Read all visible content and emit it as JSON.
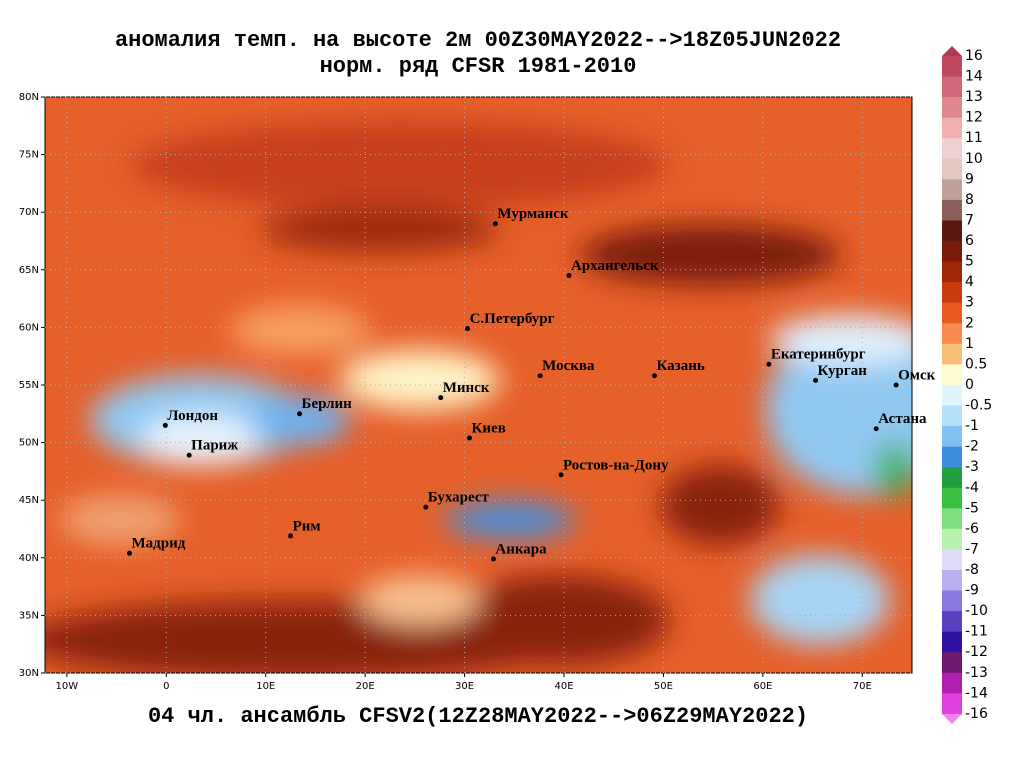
{
  "title": [
    "аномалия темп. на высоте 2м 00Z30MAY2022-->18Z05JUN2022",
    "норм. ряд CFSR 1981-2010"
  ],
  "footer": "04 чл. ансамбль CFSV2(12Z28MAY2022-->06Z29MAY2022)",
  "map": {
    "xlim": [
      -12.2,
      75
    ],
    "ylim": [
      30,
      80
    ],
    "xticks": [
      {
        "value": -10,
        "label": "10W"
      },
      0,
      {
        "value": 10,
        "label": "10E"
      },
      {
        "value": 20,
        "label": "20E"
      },
      {
        "value": 30,
        "label": "30E"
      },
      {
        "value": 40,
        "label": "40E"
      },
      {
        "value": 50,
        "label": "50E"
      },
      {
        "value": 60,
        "label": "60E"
      },
      {
        "value": 70,
        "label": "70E"
      }
    ],
    "yticks": [
      {
        "value": 30,
        "label": "30N"
      },
      {
        "value": 35,
        "label": "35N"
      },
      {
        "value": 40,
        "label": "40N"
      },
      {
        "value": 45,
        "label": "45N"
      },
      {
        "value": 50,
        "label": "50N"
      },
      {
        "value": 55,
        "label": "55N"
      },
      {
        "value": 60,
        "label": "60N"
      },
      {
        "value": 65,
        "label": "65N"
      },
      {
        "value": 70,
        "label": "70N"
      },
      {
        "value": 75,
        "label": "75N"
      },
      {
        "value": 80,
        "label": "80N"
      }
    ],
    "grid": true,
    "cities": [
      {
        "name": "Мурманск",
        "lon": 33.1,
        "lat": 69.0
      },
      {
        "name": "Архангельск",
        "lon": 40.5,
        "lat": 64.5
      },
      {
        "name": "С.Петербург",
        "lon": 30.3,
        "lat": 59.9
      },
      {
        "name": "Москва",
        "lon": 37.6,
        "lat": 55.8
      },
      {
        "name": "Казань",
        "lon": 49.1,
        "lat": 55.8
      },
      {
        "name": "Екатеринбург",
        "lon": 60.6,
        "lat": 56.8
      },
      {
        "name": "Курган",
        "lon": 65.3,
        "lat": 55.4
      },
      {
        "name": "Омск",
        "lon": 73.4,
        "lat": 55.0
      },
      {
        "name": "Астана",
        "lon": 71.4,
        "lat": 51.2
      },
      {
        "name": "Минск",
        "lon": 27.6,
        "lat": 53.9
      },
      {
        "name": "Берлин",
        "lon": 13.4,
        "lat": 52.5
      },
      {
        "name": "Лондон",
        "lon": -0.1,
        "lat": 51.5
      },
      {
        "name": "Париж",
        "lon": 2.3,
        "lat": 48.9
      },
      {
        "name": "Киев",
        "lon": 30.5,
        "lat": 50.4
      },
      {
        "name": "Ростов-на-Дону",
        "lon": 39.7,
        "lat": 47.2
      },
      {
        "name": "Бухарест",
        "lon": 26.1,
        "lat": 44.4
      },
      {
        "name": "Рим",
        "lon": 12.5,
        "lat": 41.9
      },
      {
        "name": "Мадрид",
        "lon": -3.7,
        "lat": 40.4
      },
      {
        "name": "Анкара",
        "lon": 32.9,
        "lat": 39.9
      }
    ]
  },
  "colorbar": {
    "levels": [
      16,
      14,
      13,
      12,
      11,
      10,
      9,
      8,
      7,
      6,
      5,
      4,
      3,
      2,
      1,
      0.5,
      0,
      -0.5,
      -1,
      -2,
      -3,
      -4,
      -5,
      -6,
      -7,
      -8,
      -9,
      -10,
      -11,
      -12,
      -13,
      -14,
      -16
    ],
    "colors": [
      "#b03850",
      "#c04860",
      "#d06878",
      "#e08890",
      "#f0b0b0",
      "#f0d0d0",
      "#e0c8c0",
      "#c0a098",
      "#8c6058",
      "#5a1a10",
      "#7a1a08",
      "#a02808",
      "#c83c10",
      "#e85a20",
      "#f88c50",
      "#f8bf78",
      "#fffbd0",
      "#e0f4ff",
      "#b4e0f8",
      "#80c0f0",
      "#3c8ce0",
      "#20a040",
      "#38c040",
      "#80e080",
      "#b8f0b0",
      "#e0dcf8",
      "#b8b0f0",
      "#8878e0",
      "#5840c0",
      "#3010a0",
      "#701870",
      "#b020b0",
      "#e040e0",
      "#f080f0"
    ]
  }
}
